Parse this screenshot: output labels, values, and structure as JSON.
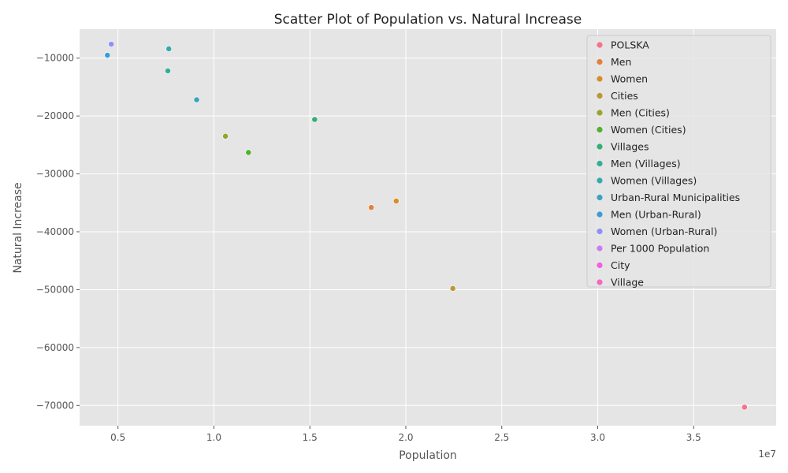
{
  "chart_data": {
    "type": "scatter",
    "title": "Scatter Plot of Population vs. Natural Increase",
    "xlabel": "Population",
    "ylabel": "Natural Increase",
    "x_offset_label": "1e7",
    "xlim": [
      3000000,
      39300000
    ],
    "ylim": [
      -73500,
      -5000
    ],
    "x_ticks": [
      5000000,
      10000000,
      15000000,
      20000000,
      25000000,
      30000000,
      35000000
    ],
    "x_tick_labels": [
      "0.5",
      "1.0",
      "1.5",
      "2.0",
      "2.5",
      "3.0",
      "3.5"
    ],
    "y_ticks": [
      -70000,
      -60000,
      -50000,
      -40000,
      -30000,
      -20000,
      -10000
    ],
    "y_tick_labels": [
      "−70000",
      "−60000",
      "−50000",
      "−40000",
      "−30000",
      "−20000",
      "−10000"
    ],
    "grid": true,
    "legend_position": "top-right",
    "series": [
      {
        "name": "POLSKA",
        "color": "#f77189",
        "points": [
          [
            37650000,
            -70300
          ]
        ]
      },
      {
        "name": "Men",
        "color": "#e5803c",
        "points": [
          [
            18200000,
            -35800
          ]
        ]
      },
      {
        "name": "Women",
        "color": "#d68e2b",
        "points": [
          [
            19500000,
            -34700
          ]
        ]
      },
      {
        "name": "Cities",
        "color": "#bb9831",
        "points": [
          [
            22450000,
            -49800
          ]
        ]
      },
      {
        "name": "Men (Cities)",
        "color": "#97a431",
        "points": [
          [
            10600000,
            -23500
          ]
        ]
      },
      {
        "name": "Women (Cities)",
        "color": "#50b131",
        "points": [
          [
            11800000,
            -26300
          ]
        ]
      },
      {
        "name": "Villages",
        "color": "#34af7a",
        "points": [
          [
            15250000,
            -20600
          ]
        ]
      },
      {
        "name": "Men (Villages)",
        "color": "#36ad96",
        "points": [
          [
            7600000,
            -12200
          ]
        ]
      },
      {
        "name": "Women (Villages)",
        "color": "#38aaac",
        "points": [
          [
            7650000,
            -8400
          ]
        ]
      },
      {
        "name": "Urban-Rural Municipalities",
        "color": "#3ba3bf",
        "points": [
          [
            9100000,
            -17200
          ]
        ]
      },
      {
        "name": "Men (Urban-Rural)",
        "color": "#3c9cd9",
        "points": [
          [
            4450000,
            -9500
          ]
        ]
      },
      {
        "name": "Women (Urban-Rural)",
        "color": "#8e90f4",
        "points": [
          [
            4650000,
            -7600
          ]
        ]
      },
      {
        "name": "Per 1000 Population",
        "color": "#c97df3",
        "points": []
      },
      {
        "name": "City",
        "color": "#f45fe4",
        "points": []
      },
      {
        "name": "Village",
        "color": "#f668c0",
        "points": []
      }
    ]
  }
}
